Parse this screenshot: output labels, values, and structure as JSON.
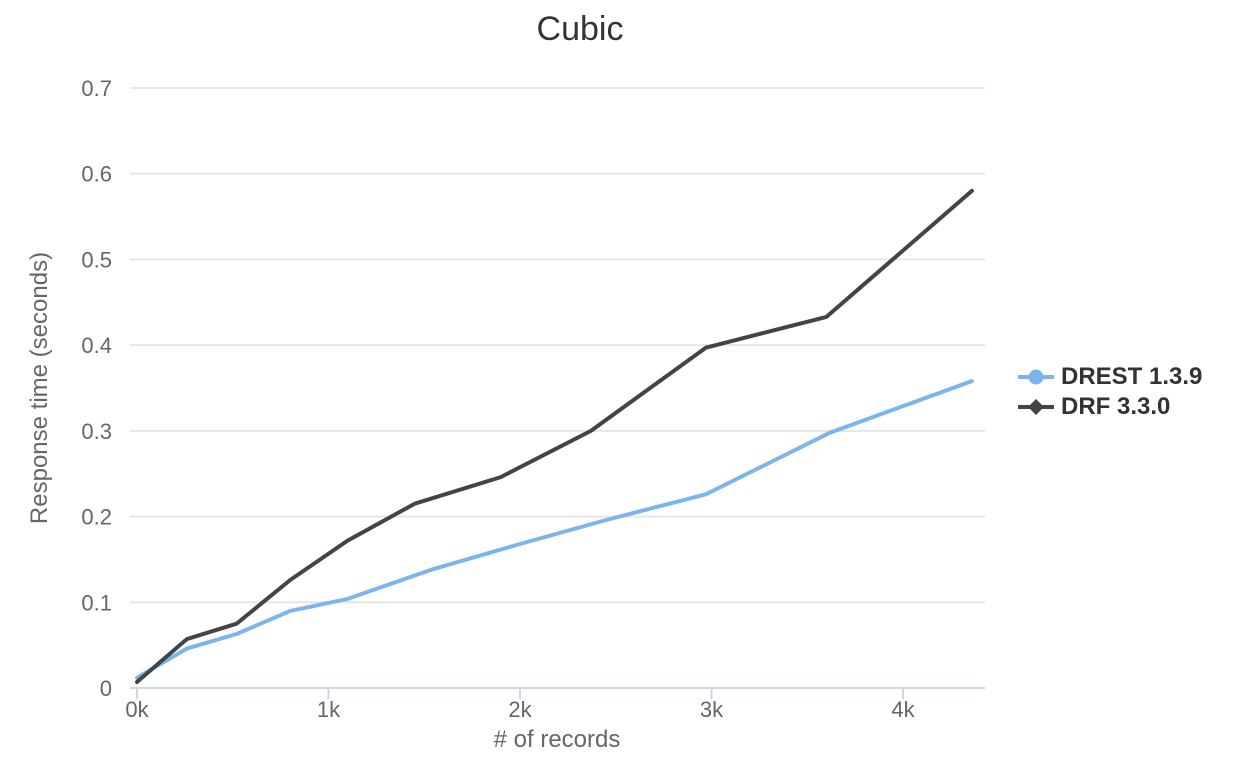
{
  "title": "Cubic",
  "chart_data": {
    "type": "line",
    "title": "Cubic",
    "xlabel": "# of records",
    "ylabel": "Response time (seconds)",
    "xlim": [
      0,
      4.43
    ],
    "ylim": [
      0,
      0.7
    ],
    "x_unit": "thousands of records",
    "grid": true,
    "legend_position": "right",
    "x_ticks": [
      {
        "value": 0,
        "label": "0k"
      },
      {
        "value": 1,
        "label": "1k"
      },
      {
        "value": 2,
        "label": "2k"
      },
      {
        "value": 3,
        "label": "3k"
      },
      {
        "value": 4,
        "label": "4k"
      }
    ],
    "y_ticks": [
      {
        "value": 0.0,
        "label": "0"
      },
      {
        "value": 0.1,
        "label": "0.1"
      },
      {
        "value": 0.2,
        "label": "0.2"
      },
      {
        "value": 0.3,
        "label": "0.3"
      },
      {
        "value": 0.4,
        "label": "0.4"
      },
      {
        "value": 0.5,
        "label": "0.5"
      },
      {
        "value": 0.6,
        "label": "0.6"
      },
      {
        "value": 0.7,
        "label": "0.7"
      }
    ],
    "series": [
      {
        "name": "DREST 1.3.9",
        "color": "#7cb5ec",
        "marker": "circle",
        "points": [
          [
            0,
            0.012
          ],
          [
            0.26,
            0.046
          ],
          [
            0.52,
            0.063
          ],
          [
            0.8,
            0.09
          ],
          [
            1.1,
            0.104
          ],
          [
            1.55,
            0.139
          ],
          [
            2.0,
            0.168
          ],
          [
            2.45,
            0.196
          ],
          [
            2.97,
            0.226
          ],
          [
            3.62,
            0.298
          ],
          [
            4.36,
            0.358
          ]
        ]
      },
      {
        "name": "DRF 3.3.0",
        "color": "#434348",
        "marker": "diamond",
        "points": [
          [
            0,
            0.007
          ],
          [
            0.26,
            0.057
          ],
          [
            0.52,
            0.075
          ],
          [
            0.8,
            0.126
          ],
          [
            1.1,
            0.172
          ],
          [
            1.45,
            0.215
          ],
          [
            1.9,
            0.246
          ],
          [
            2.37,
            0.3
          ],
          [
            2.97,
            0.397
          ],
          [
            3.6,
            0.433
          ],
          [
            4.36,
            0.58
          ]
        ]
      }
    ],
    "colors": {
      "grid": "#e6e6e6",
      "axis_line": "#ccd6eb",
      "tick_label": "#666666",
      "axis_title": "#666666",
      "chart_title": "#333333",
      "legend_text": "#333333"
    }
  }
}
